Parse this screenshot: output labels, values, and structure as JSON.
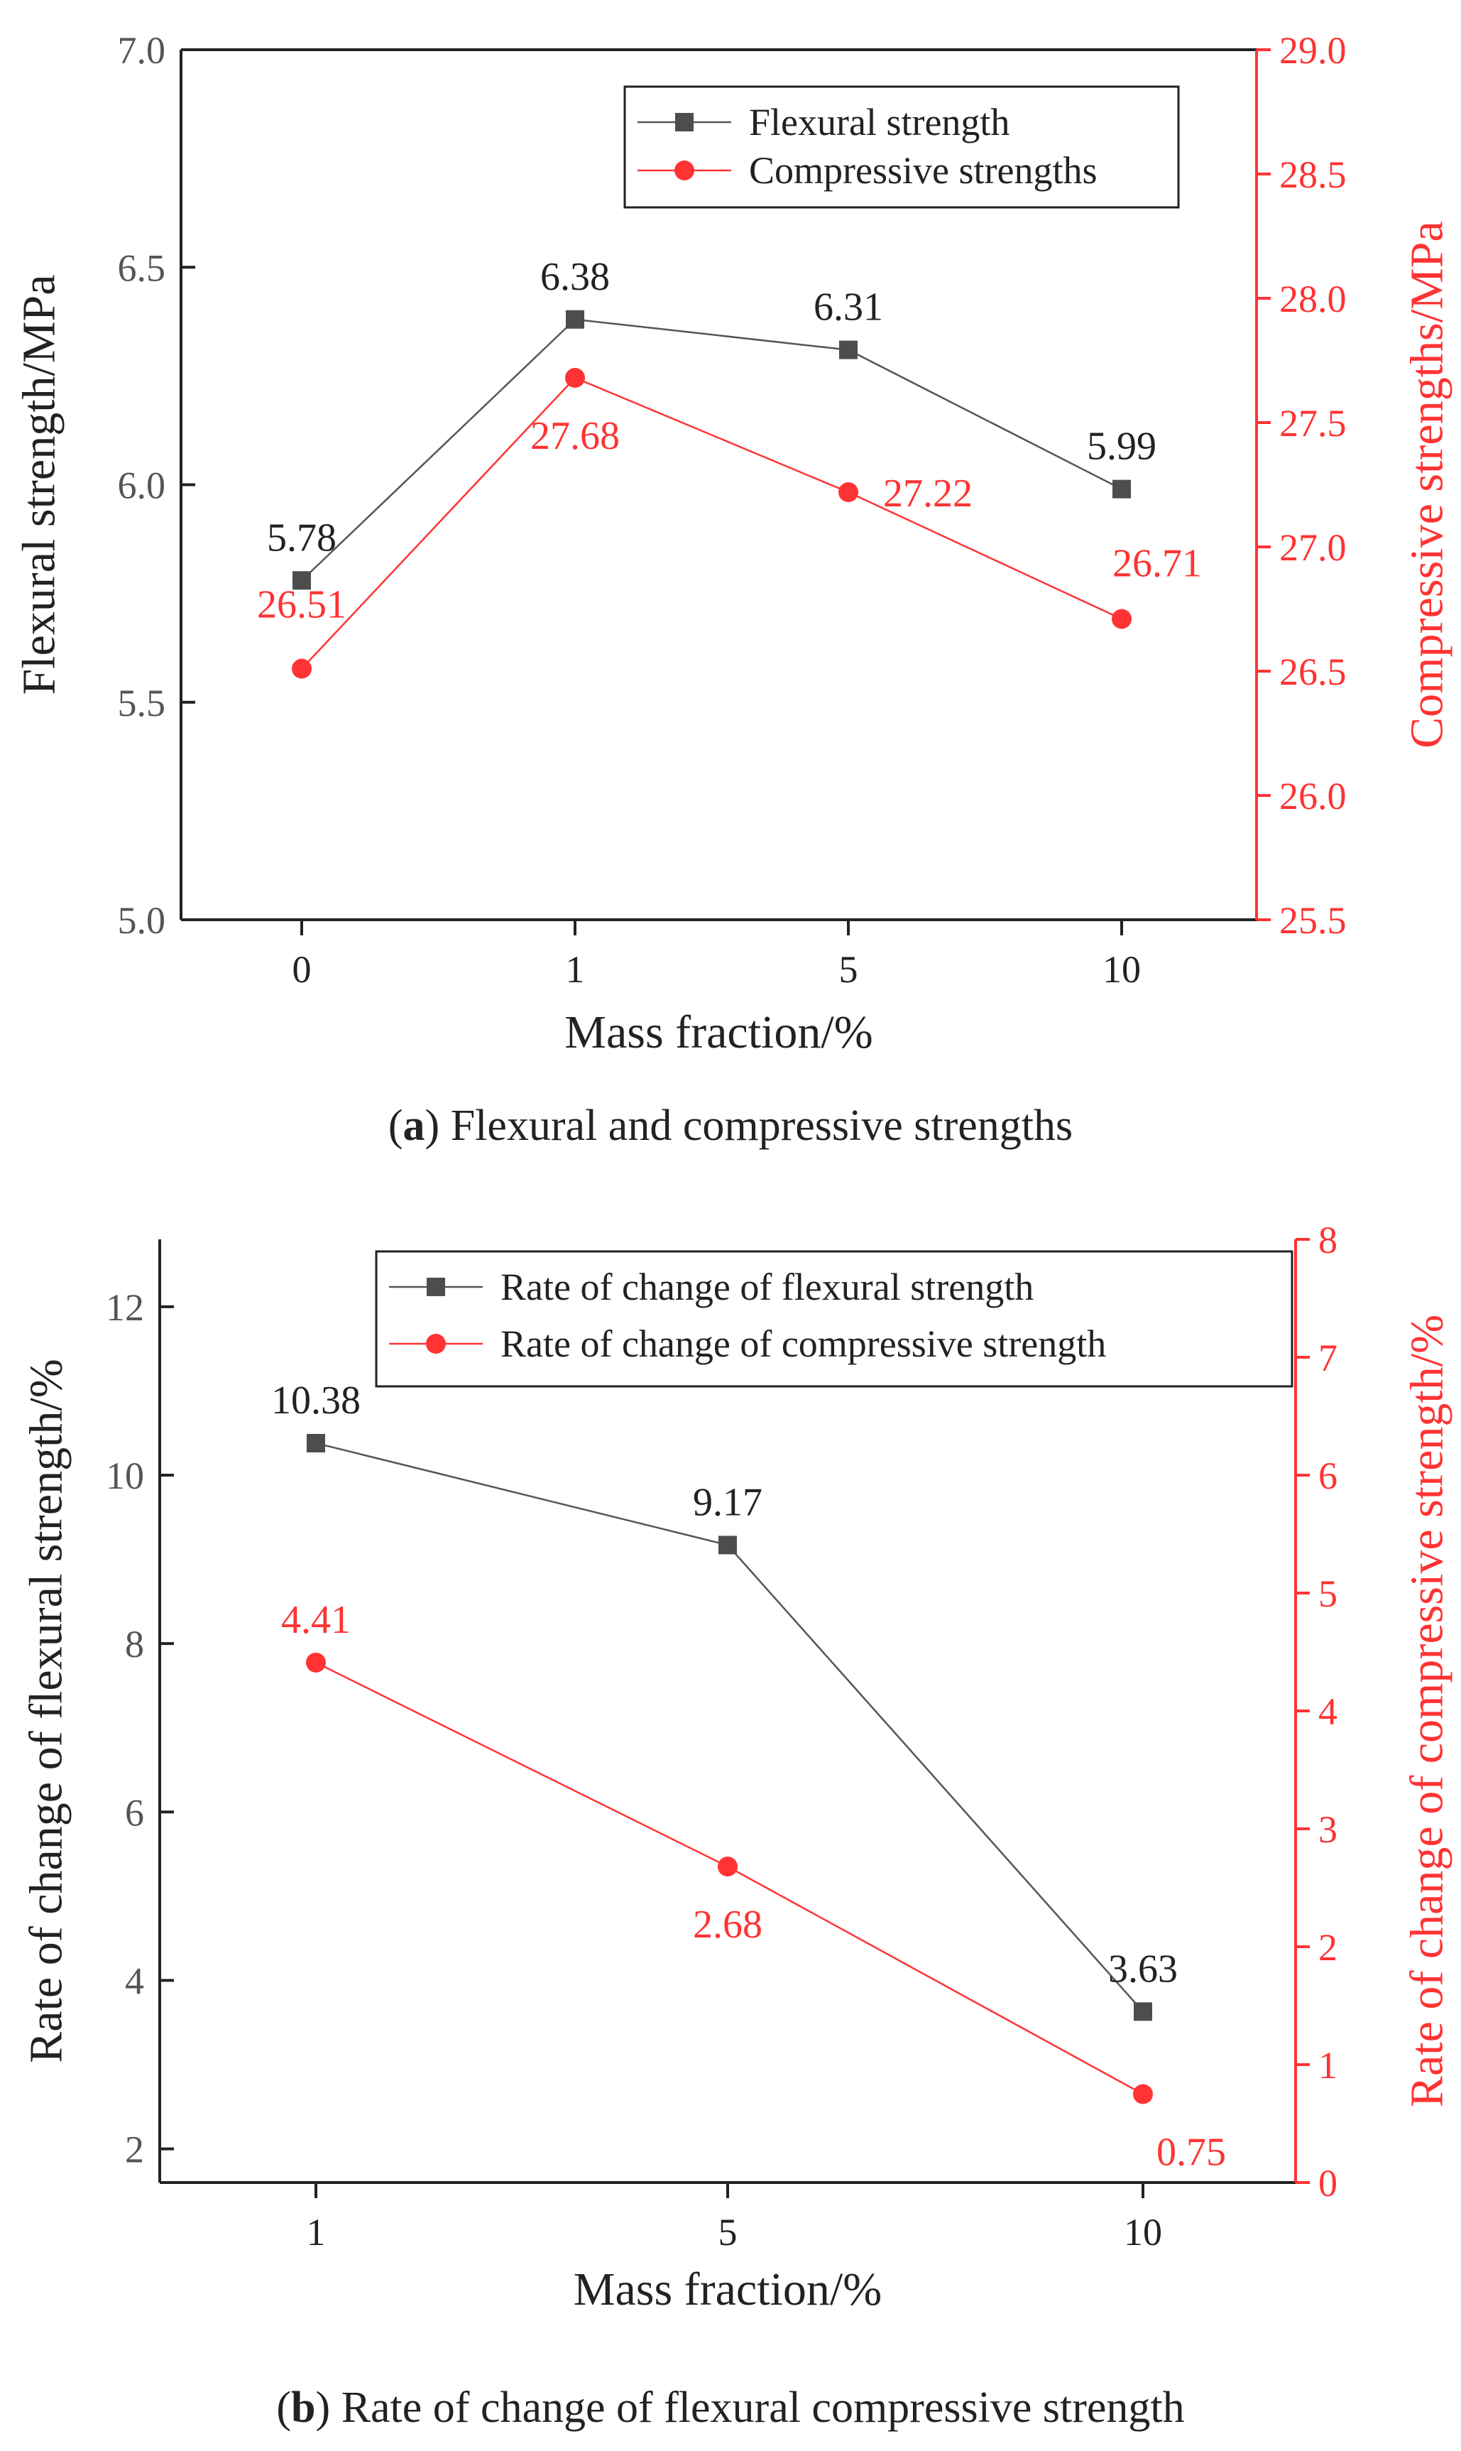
{
  "colors": {
    "series1": "#555555",
    "series2": "#ff3333",
    "axis_left": "#222222",
    "axis_right": "#ff3333",
    "marker1": "#4d4d4d"
  },
  "chart_data": [
    {
      "type": "line",
      "title": "",
      "caption_label": "a",
      "caption_text": "Flexural and compressive strengths",
      "categories": [
        "0",
        "1",
        "5",
        "10"
      ],
      "xlabel": "Mass fraction/%",
      "ylabel": "Flexural strength/MPa",
      "y2label": "Compressive strengths/MPa",
      "ylim": [
        5.0,
        7.0
      ],
      "y2lim": [
        25.5,
        29.0
      ],
      "yticks": [
        "5.0",
        "5.5",
        "6.0",
        "6.5",
        "7.0"
      ],
      "y2ticks": [
        "25.5",
        "26.0",
        "26.5",
        "27.0",
        "27.5",
        "28.0",
        "28.5",
        "29.0"
      ],
      "legend_position": "top-right",
      "series": [
        {
          "name": "Flexural strength",
          "axis": "left",
          "marker": "square",
          "values": [
            5.78,
            6.38,
            6.31,
            5.99
          ],
          "labels": [
            "5.78",
            "6.38",
            "6.31",
            "5.99"
          ]
        },
        {
          "name": "Compressive strengths",
          "axis": "right",
          "marker": "circle",
          "values": [
            26.51,
            27.68,
            27.22,
            26.71
          ],
          "labels": [
            "26.51",
            "27.68",
            "27.22",
            "26.71"
          ]
        }
      ]
    },
    {
      "type": "line",
      "title": "",
      "caption_label": "b",
      "caption_text": "Rate of change of flexural compressive strength",
      "categories": [
        "1",
        "5",
        "10"
      ],
      "xlabel": "Mass fraction/%",
      "ylabel": "Rate of change of flexural strength/%",
      "y2label": "Rate of change of compressive strength/%",
      "ylim": [
        1.6,
        12.8
      ],
      "y2lim": [
        0,
        8
      ],
      "yticks": [
        "2",
        "4",
        "6",
        "8",
        "10",
        "12"
      ],
      "y2ticks": [
        "0",
        "1",
        "2",
        "3",
        "4",
        "5",
        "6",
        "7",
        "8"
      ],
      "legend_position": "top-right",
      "series": [
        {
          "name": "Rate of change of flexural strength",
          "axis": "left",
          "marker": "square",
          "values": [
            10.38,
            9.17,
            3.63
          ],
          "labels": [
            "10.38",
            "9.17",
            "3.63"
          ]
        },
        {
          "name": "Rate of change of compressive strength",
          "axis": "right",
          "marker": "circle",
          "values": [
            4.41,
            2.68,
            0.75
          ],
          "labels": [
            "4.41",
            "2.68",
            "0.75"
          ]
        }
      ]
    }
  ]
}
